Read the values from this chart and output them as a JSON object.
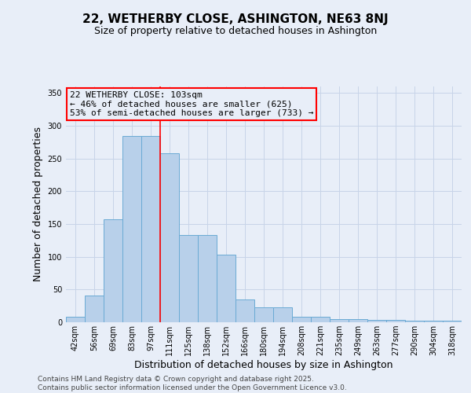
{
  "title": "22, WETHERBY CLOSE, ASHINGTON, NE63 8NJ",
  "subtitle": "Size of property relative to detached houses in Ashington",
  "xlabel": "Distribution of detached houses by size in Ashington",
  "ylabel": "Number of detached properties",
  "categories": [
    "42sqm",
    "56sqm",
    "69sqm",
    "83sqm",
    "97sqm",
    "111sqm",
    "125sqm",
    "138sqm",
    "152sqm",
    "166sqm",
    "180sqm",
    "194sqm",
    "208sqm",
    "221sqm",
    "235sqm",
    "249sqm",
    "263sqm",
    "277sqm",
    "290sqm",
    "304sqm",
    "318sqm"
  ],
  "values": [
    8,
    41,
    157,
    285,
    285,
    258,
    133,
    133,
    103,
    35,
    23,
    23,
    8,
    8,
    5,
    5,
    4,
    4,
    3,
    2,
    2
  ],
  "bar_color": "#b8d0ea",
  "bar_edge_color": "#6aaad4",
  "red_line_idx": 5,
  "annotation_line1": "22 WETHERBY CLOSE: 103sqm",
  "annotation_line2": "← 46% of detached houses are smaller (625)",
  "annotation_line3": "53% of semi-detached houses are larger (733) →",
  "ylim": [
    0,
    360
  ],
  "yticks": [
    0,
    50,
    100,
    150,
    200,
    250,
    300,
    350
  ],
  "grid_color": "#c8d4e8",
  "background_color": "#e8eef8",
  "footer_line1": "Contains HM Land Registry data © Crown copyright and database right 2025.",
  "footer_line2": "Contains public sector information licensed under the Open Government Licence v3.0.",
  "title_fontsize": 11,
  "subtitle_fontsize": 9,
  "axis_label_fontsize": 9,
  "tick_fontsize": 7,
  "annotation_fontsize": 8,
  "footer_fontsize": 6.5
}
